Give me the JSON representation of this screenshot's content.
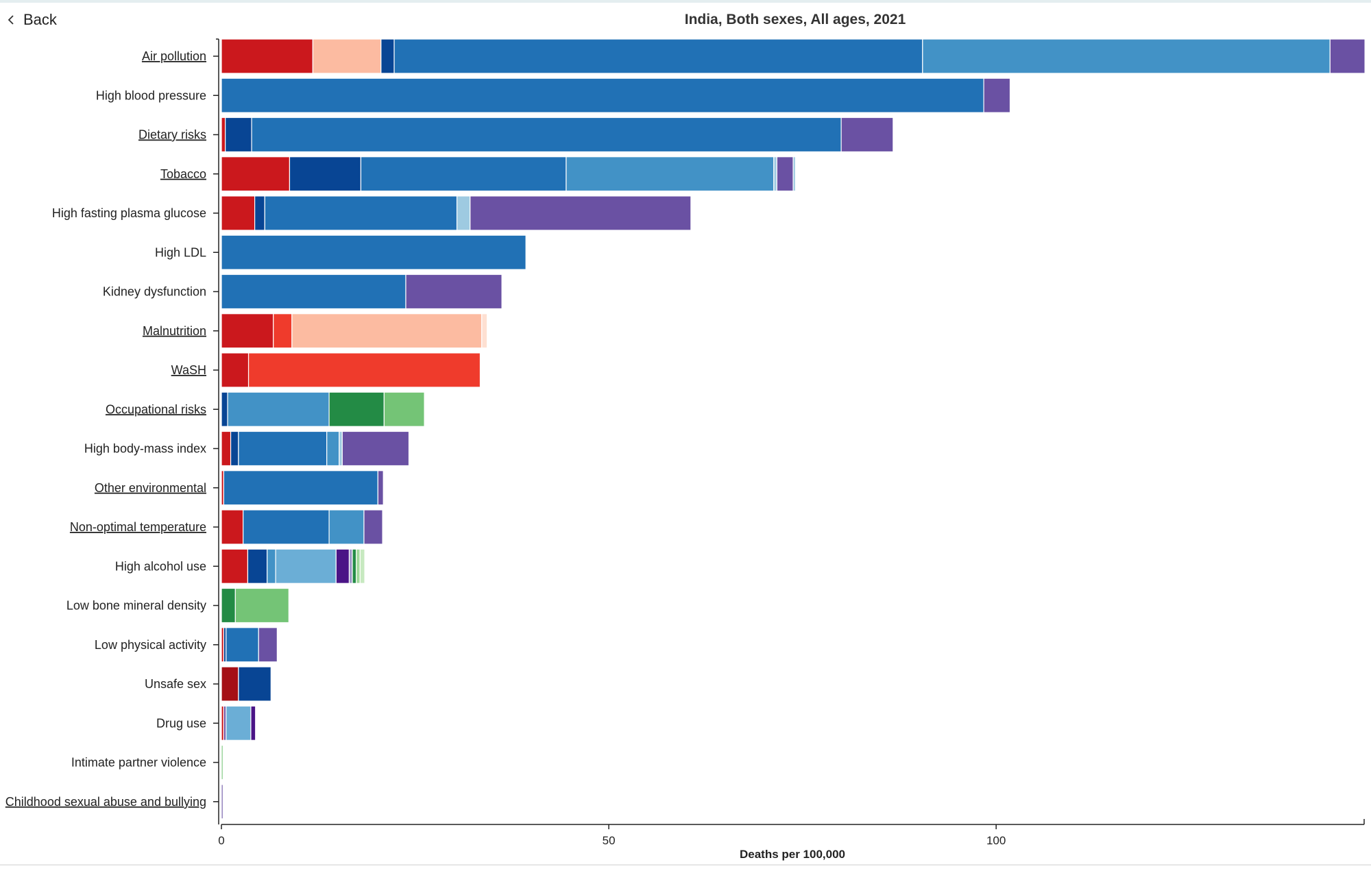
{
  "header": {
    "back_label": "Back"
  },
  "icons": {
    "back": "chevron-left-icon"
  },
  "chart_data": {
    "type": "bar",
    "orientation": "horizontal",
    "stacked": true,
    "title": "India, Both sexes, All ages, 2021",
    "xlabel": "Deaths per 100,000",
    "ylabel": "",
    "xlim": [
      0,
      147.5
    ],
    "xticks": [
      0,
      50,
      100
    ],
    "grid": false,
    "categories": [
      "Air pollution",
      "High blood pressure",
      "Dietary risks",
      "Tobacco",
      "High fasting plasma glucose",
      "High LDL",
      "Kidney dysfunction",
      "Malnutrition",
      "WaSH",
      "Occupational risks",
      "High body-mass index",
      "Other environmental",
      "Non-optimal temperature",
      "High alcohol use",
      "Low bone mineral density",
      "Low physical activity",
      "Unsafe sex",
      "Drug use",
      "Intimate partner violence",
      "Childhood sexual abuse and bullying"
    ],
    "linked_categories": [
      "Air pollution",
      "Dietary risks",
      "Tobacco",
      "Malnutrition",
      "WaSH",
      "Occupational risks",
      "Other environmental",
      "Non-optimal temperature",
      "Childhood sexual abuse and bullying"
    ],
    "stacks": [
      [
        {
          "value": 11.8,
          "color": "#cb181d"
        },
        {
          "value": 8.8,
          "color": "#fcbba1"
        },
        {
          "value": 1.7,
          "color": "#084594"
        },
        {
          "value": 68.2,
          "color": "#2171b5"
        },
        {
          "value": 52.6,
          "color": "#4292c6"
        },
        {
          "value": 4.5,
          "color": "#6a51a3"
        }
      ],
      [
        {
          "value": 98.4,
          "color": "#2171b5"
        },
        {
          "value": 3.4,
          "color": "#6a51a3"
        }
      ],
      [
        {
          "value": 0.5,
          "color": "#cb181d"
        },
        {
          "value": 3.4,
          "color": "#084594"
        },
        {
          "value": 76.1,
          "color": "#2171b5"
        },
        {
          "value": 6.7,
          "color": "#6a51a3"
        }
      ],
      [
        {
          "value": 8.8,
          "color": "#cb181d"
        },
        {
          "value": 9.2,
          "color": "#084594"
        },
        {
          "value": 26.5,
          "color": "#2171b5"
        },
        {
          "value": 26.8,
          "color": "#4292c6"
        },
        {
          "value": 0.4,
          "color": "#9ecae1"
        },
        {
          "value": 2.1,
          "color": "#6a51a3"
        },
        {
          "value": 0.3,
          "color": "#9ecae1"
        }
      ],
      [
        {
          "value": 4.3,
          "color": "#cb181d"
        },
        {
          "value": 1.3,
          "color": "#084594"
        },
        {
          "value": 24.8,
          "color": "#2171b5"
        },
        {
          "value": 1.7,
          "color": "#9ecae1"
        },
        {
          "value": 28.5,
          "color": "#6a51a3"
        }
      ],
      [
        {
          "value": 39.3,
          "color": "#2171b5"
        }
      ],
      [
        {
          "value": 23.8,
          "color": "#2171b5"
        },
        {
          "value": 12.4,
          "color": "#6a51a3"
        }
      ],
      [
        {
          "value": 6.7,
          "color": "#cb181d"
        },
        {
          "value": 2.4,
          "color": "#ef3b2c"
        },
        {
          "value": 24.5,
          "color": "#fcbba1"
        },
        {
          "value": 0.7,
          "color": "#fee0d2"
        }
      ],
      [
        {
          "value": 3.5,
          "color": "#cb181d"
        },
        {
          "value": 29.9,
          "color": "#ef3b2c"
        }
      ],
      [
        {
          "value": 0.8,
          "color": "#084594"
        },
        {
          "value": 13.1,
          "color": "#4292c6"
        },
        {
          "value": 7.1,
          "color": "#238b45"
        },
        {
          "value": 5.2,
          "color": "#74c476"
        }
      ],
      [
        {
          "value": 1.2,
          "color": "#cb181d"
        },
        {
          "value": 1.0,
          "color": "#084594"
        },
        {
          "value": 11.4,
          "color": "#2171b5"
        },
        {
          "value": 1.6,
          "color": "#4292c6"
        },
        {
          "value": 0.4,
          "color": "#9ecae1"
        },
        {
          "value": 8.6,
          "color": "#6a51a3"
        }
      ],
      [
        {
          "value": 0.3,
          "color": "#cb181d"
        },
        {
          "value": 19.9,
          "color": "#2171b5"
        },
        {
          "value": 0.7,
          "color": "#6a51a3"
        }
      ],
      [
        {
          "value": 2.8,
          "color": "#cb181d"
        },
        {
          "value": 11.1,
          "color": "#2171b5"
        },
        {
          "value": 4.5,
          "color": "#4292c6"
        },
        {
          "value": 2.4,
          "color": "#6a51a3"
        }
      ],
      [
        {
          "value": 3.4,
          "color": "#cb181d"
        },
        {
          "value": 2.5,
          "color": "#084594"
        },
        {
          "value": 1.1,
          "color": "#4292c6"
        },
        {
          "value": 7.8,
          "color": "#6baed6"
        },
        {
          "value": 1.7,
          "color": "#4a1486"
        },
        {
          "value": 0.4,
          "color": "#9e9ac8"
        },
        {
          "value": 0.5,
          "color": "#238b45"
        },
        {
          "value": 0.5,
          "color": "#a1d99b"
        },
        {
          "value": 0.6,
          "color": "#c7e9c0"
        }
      ],
      [
        {
          "value": 1.8,
          "color": "#238b45"
        },
        {
          "value": 6.9,
          "color": "#74c476"
        }
      ],
      [
        {
          "value": 0.3,
          "color": "#cb181d"
        },
        {
          "value": 0.3,
          "color": "#084594"
        },
        {
          "value": 4.2,
          "color": "#2171b5"
        },
        {
          "value": 2.4,
          "color": "#6a51a3"
        }
      ],
      [
        {
          "value": 2.2,
          "color": "#a50f15"
        },
        {
          "value": 4.2,
          "color": "#084594"
        }
      ],
      [
        {
          "value": 0.3,
          "color": "#cb181d"
        },
        {
          "value": 0.3,
          "color": "#6a51a3"
        },
        {
          "value": 3.2,
          "color": "#6baed6"
        },
        {
          "value": 0.6,
          "color": "#4a1486"
        }
      ],
      [
        {
          "value": 0.2,
          "color": "#74c476"
        }
      ],
      [
        {
          "value": 0.2,
          "color": "#6a51a3"
        }
      ]
    ]
  }
}
